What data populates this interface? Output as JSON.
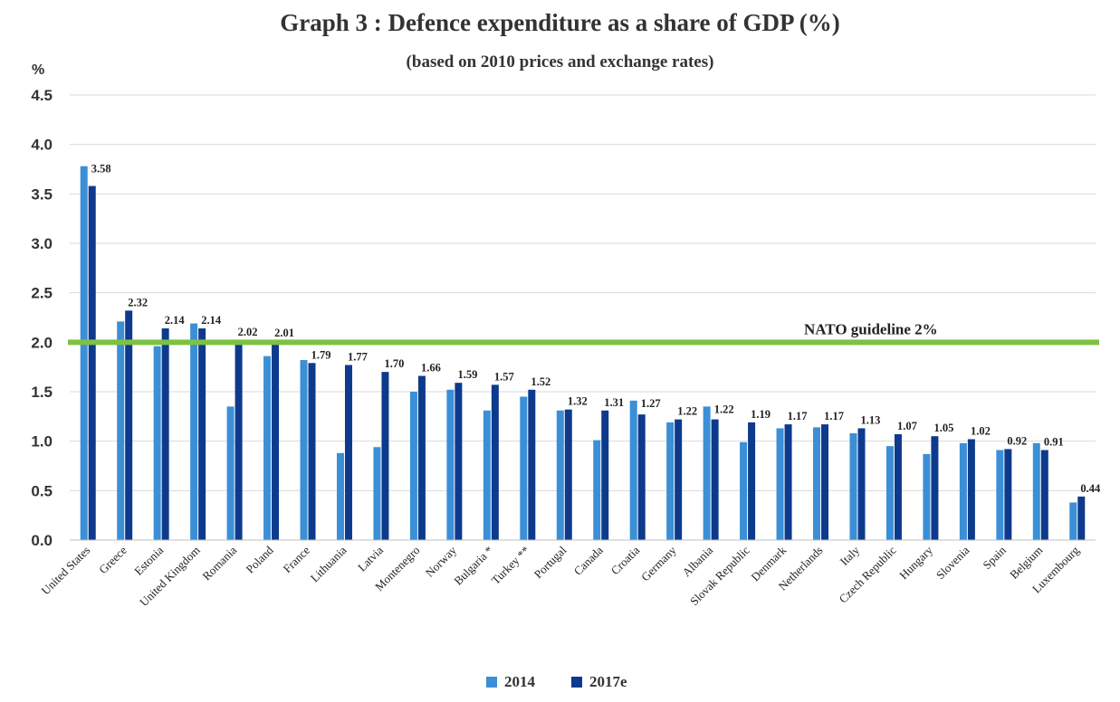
{
  "chart_data": {
    "type": "bar",
    "title": "Graph 3 : Defence expenditure as a share of GDP (%)",
    "subtitle": "(based on 2010 prices and exchange rates)",
    "ylabel": "%",
    "ylim": [
      0,
      4.5
    ],
    "yticks": [
      "0.0",
      "0.5",
      "1.0",
      "1.5",
      "2.0",
      "2.5",
      "3.0",
      "3.5",
      "4.0",
      "4.5"
    ],
    "grid": true,
    "legend_position": "bottom",
    "categories": [
      "United States",
      "Greece",
      "Estonia",
      "United Kingdom",
      "Romania",
      "Poland",
      "France",
      "Lithuania",
      "Latvia",
      "Montenegro",
      "Norway",
      "Bulgaria *",
      "Turkey **",
      "Portugal",
      "Canada",
      "Croatia",
      "Germany",
      "Albania",
      "Slovak Republic",
      "Denmark",
      "Netherlands",
      "Italy",
      "Czech Republic",
      "Hungary",
      "Slovenia",
      "Spain",
      "Belgium",
      "Luxembourg"
    ],
    "series": [
      {
        "name": "2014",
        "color": "#3b8fd6",
        "values": [
          3.78,
          2.21,
          1.96,
          2.19,
          1.35,
          1.86,
          1.82,
          0.88,
          0.94,
          1.5,
          1.52,
          1.31,
          1.45,
          1.31,
          1.01,
          1.41,
          1.19,
          1.35,
          0.99,
          1.13,
          1.14,
          1.08,
          0.95,
          0.87,
          0.98,
          0.91,
          0.98,
          0.38
        ]
      },
      {
        "name": "2017e",
        "color": "#0d3a8c",
        "values": [
          3.58,
          2.32,
          2.14,
          2.14,
          2.02,
          2.01,
          1.79,
          1.77,
          1.7,
          1.66,
          1.59,
          1.57,
          1.52,
          1.32,
          1.31,
          1.27,
          1.22,
          1.22,
          1.19,
          1.17,
          1.17,
          1.13,
          1.07,
          1.05,
          1.02,
          0.92,
          0.91,
          0.44
        ],
        "labels": [
          "3.58",
          "2.32",
          "2.14",
          "2.14",
          "2.02",
          "2.01",
          "1.79",
          "1.77",
          "1.70",
          "1.66",
          "1.59",
          "1.57",
          "1.52",
          "1.32",
          "1.31",
          "1.27",
          "1.22",
          "1.22",
          "1.19",
          "1.17",
          "1.17",
          "1.13",
          "1.07",
          "1.05",
          "1.02",
          "0.92",
          "0.91",
          "0.44"
        ]
      }
    ],
    "reference_line": {
      "value": 2.0,
      "label": "NATO guideline 2%",
      "color": "#7dc242"
    }
  }
}
